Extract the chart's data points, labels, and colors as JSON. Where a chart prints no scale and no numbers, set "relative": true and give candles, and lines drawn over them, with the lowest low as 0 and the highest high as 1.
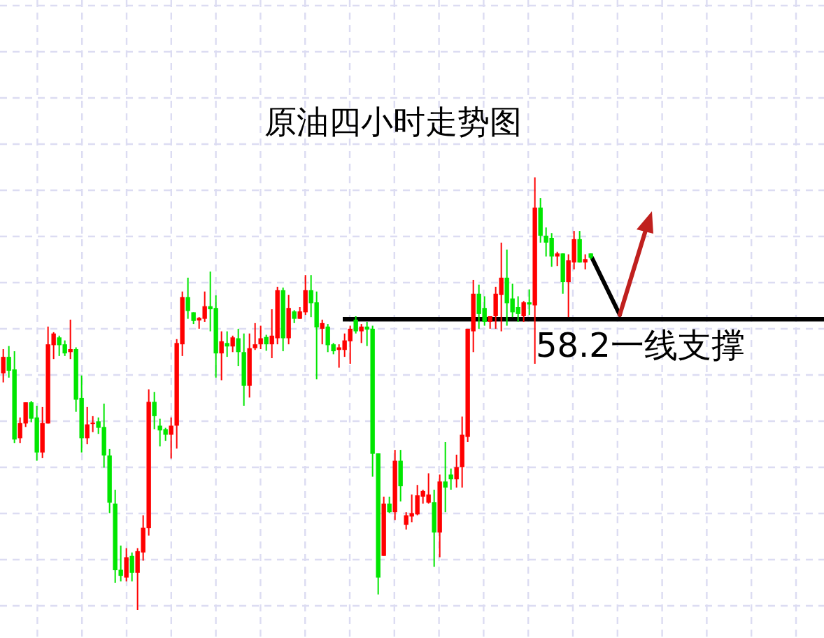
{
  "chart_data": {
    "type": "candlestick",
    "title": "原油四小时走势图",
    "relative": true,
    "grid": true,
    "categories": [
      null,
      null,
      null,
      null,
      null,
      null,
      null,
      null,
      null,
      null,
      null,
      null,
      null,
      null,
      null,
      null,
      null,
      null,
      null,
      null,
      null,
      null,
      null,
      null,
      null,
      null,
      null,
      null,
      null,
      null,
      null,
      null,
      null,
      null,
      null,
      null,
      null,
      null,
      null,
      null,
      null,
      null,
      null,
      null,
      null,
      null,
      null,
      null,
      null,
      null,
      null,
      null,
      null,
      null,
      null,
      null,
      null,
      null,
      null,
      null,
      null,
      null,
      null,
      null,
      null,
      null,
      null,
      null,
      null,
      null,
      null,
      null,
      null,
      null,
      null,
      null,
      null,
      null,
      null,
      null,
      null,
      null,
      null,
      null,
      null,
      null,
      null,
      null,
      null,
      null,
      null,
      null,
      null,
      null,
      null,
      null,
      null,
      null,
      null,
      null,
      null,
      null,
      null,
      null,
      null,
      null
    ],
    "ohlc": [
      [
        0.547,
        0.603,
        0.526,
        0.585
      ],
      [
        0.585,
        0.61,
        0.537,
        0.553
      ],
      [
        0.556,
        0.598,
        0.386,
        0.394
      ],
      [
        0.397,
        0.445,
        0.386,
        0.432
      ],
      [
        0.431,
        0.48,
        0.423,
        0.48
      ],
      [
        0.48,
        0.483,
        0.434,
        0.442
      ],
      [
        0.445,
        0.472,
        0.345,
        0.364
      ],
      [
        0.364,
        0.469,
        0.351,
        0.432
      ],
      [
        0.431,
        0.655,
        0.431,
        0.614
      ],
      [
        0.612,
        0.642,
        0.58,
        0.639
      ],
      [
        0.63,
        0.634,
        0.587,
        0.612
      ],
      [
        0.614,
        0.623,
        0.587,
        0.593
      ],
      [
        0.596,
        0.671,
        0.58,
        0.603
      ],
      [
        0.603,
        0.607,
        0.458,
        0.486
      ],
      [
        0.49,
        0.542,
        0.364,
        0.397
      ],
      [
        0.397,
        0.469,
        0.383,
        0.429
      ],
      [
        0.431,
        0.448,
        0.411,
        0.433
      ],
      [
        0.436,
        0.445,
        0.407,
        0.421
      ],
      [
        0.423,
        0.477,
        0.329,
        0.357
      ],
      [
        0.357,
        0.372,
        0.224,
        0.248
      ],
      [
        0.246,
        0.278,
        0.063,
        0.092
      ],
      [
        0.093,
        0.149,
        0.066,
        0.079
      ],
      [
        0.075,
        0.143,
        0.066,
        0.122
      ],
      [
        0.125,
        0.133,
        0.066,
        0.086
      ],
      [
        0.086,
        0.143,
        0,
        0.136
      ],
      [
        0.133,
        0.219,
        0.114,
        0.19
      ],
      [
        0.189,
        0.51,
        0.172,
        0.481
      ],
      [
        0.481,
        0.504,
        0.418,
        0.448
      ],
      [
        0.426,
        0.442,
        0.378,
        0.415
      ],
      [
        0.418,
        0.421,
        0.391,
        0.405
      ],
      [
        0.405,
        0.445,
        0.35,
        0.426
      ],
      [
        0.426,
        0.626,
        0.373,
        0.617
      ],
      [
        0.614,
        0.736,
        0.587,
        0.723
      ],
      [
        0.723,
        0.768,
        0.673,
        0.691
      ],
      [
        0.688,
        0.688,
        0.661,
        0.668
      ],
      [
        0.669,
        0.677,
        0.65,
        0.675
      ],
      [
        0.673,
        0.736,
        0.666,
        0.702
      ],
      [
        0.702,
        0.782,
        0.644,
        0.695
      ],
      [
        0.698,
        0.727,
        0.537,
        0.593
      ],
      [
        0.593,
        0.644,
        0.531,
        0.621
      ],
      [
        0.617,
        0.644,
        0.585,
        0.609
      ],
      [
        0.609,
        0.634,
        0.596,
        0.63
      ],
      [
        0.628,
        0.65,
        0.564,
        0.596
      ],
      [
        0.596,
        0.639,
        0.472,
        0.518
      ],
      [
        0.518,
        0.639,
        0.491,
        0.605
      ],
      [
        0.605,
        0.663,
        0.601,
        0.614
      ],
      [
        0.614,
        0.657,
        0.603,
        0.628
      ],
      [
        0.631,
        0.636,
        0.599,
        0.614
      ],
      [
        0.614,
        0.695,
        0.582,
        0.634
      ],
      [
        0.628,
        0.747,
        0.614,
        0.739
      ],
      [
        0.739,
        0.745,
        0.598,
        0.628
      ],
      [
        0.628,
        0.728,
        0.614,
        0.698
      ],
      [
        0.69,
        0.693,
        0.663,
        0.673
      ],
      [
        0.673,
        0.7,
        0.673,
        0.69
      ],
      [
        0.688,
        0.774,
        0.682,
        0.739
      ],
      [
        0.739,
        0.774,
        0.677,
        0.709
      ],
      [
        0.711,
        0.736,
        0.533,
        0.653
      ],
      [
        0.65,
        0.671,
        0.614,
        0.663
      ],
      [
        0.655,
        0.661,
        0.596,
        0.612
      ],
      [
        0.614,
        0.617,
        0.591,
        0.598
      ],
      [
        0.601,
        0.614,
        0.56,
        0.607
      ],
      [
        0.601,
        0.639,
        0.585,
        0.623
      ],
      [
        0.621,
        0.657,
        0.569,
        0.65
      ],
      [
        0.671,
        0.679,
        0.639,
        0.644
      ],
      [
        0.644,
        0.661,
        0.617,
        0.655
      ],
      [
        0.655,
        0.666,
        0.61,
        0.648
      ],
      [
        0.65,
        0.657,
        0.308,
        0.361
      ],
      [
        0.362,
        0.362,
        0.036,
        0.075
      ],
      [
        0.125,
        0.262,
        0.125,
        0.246
      ],
      [
        0.246,
        0.262,
        0.224,
        0.226
      ],
      [
        0.226,
        0.37,
        0.208,
        0.345
      ],
      [
        0.345,
        0.37,
        0.251,
        0.286
      ],
      [
        0.197,
        0.226,
        0.186,
        0.219
      ],
      [
        0.216,
        0.267,
        0.203,
        0.224
      ],
      [
        0.221,
        0.289,
        0.219,
        0.265
      ],
      [
        0.262,
        0.278,
        0.246,
        0.275
      ],
      [
        0.248,
        0.316,
        0.246,
        0.267
      ],
      [
        0.249,
        0.278,
        0.1,
        0.179
      ],
      [
        0.179,
        0.313,
        0.122,
        0.297
      ],
      [
        0.297,
        0.388,
        0.226,
        0.283
      ],
      [
        0.313,
        0.327,
        0.278,
        0.302
      ],
      [
        0.302,
        0.359,
        0.283,
        0.33
      ],
      [
        0.33,
        0.447,
        0.283,
        0.405
      ],
      [
        0.4,
        0.65,
        0.388,
        0.65
      ],
      [
        0.644,
        0.763,
        0.596,
        0.731
      ],
      [
        0.731,
        0.752,
        0.65,
        0.684
      ],
      [
        0.698,
        0.725,
        0.657,
        0.666
      ],
      [
        0.666,
        0.679,
        0.65,
        0.679
      ],
      [
        0.679,
        0.747,
        0.65,
        0.731
      ],
      [
        0.728,
        0.849,
        0.644,
        0.768
      ],
      [
        0.768,
        0.833,
        0.657,
        0.709
      ],
      [
        0.72,
        0.754,
        0.677,
        0.688
      ],
      [
        0.7,
        0.725,
        0.666,
        0.684
      ],
      [
        0.679,
        0.714,
        0.666,
        0.711
      ],
      [
        0.711,
        0.741,
        0.682,
        0.706
      ],
      [
        0.704,
        1,
        0.569,
        0.93
      ],
      [
        0.93,
        0.952,
        0.849,
        0.865
      ],
      [
        0.865,
        0.884,
        0.817,
        0.849
      ],
      [
        0.86,
        0.871,
        0.793,
        0.817
      ],
      [
        0.817,
        0.828,
        0.795,
        0.824
      ],
      [
        0.824,
        0.824,
        0.731,
        0.758
      ],
      [
        0.758,
        0.822,
        0.677,
        0.808
      ],
      [
        0.803,
        0.876,
        0.787,
        0.857
      ],
      [
        0.857,
        0.876,
        0.803,
        0.803
      ],
      [
        0.803,
        0.822,
        0.787,
        0.811
      ],
      [
        0.824,
        0.824,
        0.811,
        0.814
      ]
    ],
    "colors": [
      "#ff0000",
      "#00e600",
      "#00e600",
      "#ff0000",
      "#ff0000",
      "#00e600",
      "#00e600",
      "#ff0000",
      "#ff0000",
      "#ff0000",
      "#00e600",
      "#00e600",
      "#ff0000",
      "#00e600",
      "#00e600",
      "#ff0000",
      "#ff0000",
      "#00e600",
      "#00e600",
      "#00e600",
      "#00e600",
      "#00e600",
      "#ff0000",
      "#00e600",
      "#ff0000",
      "#ff0000",
      "#ff0000",
      "#00e600",
      "#00e600",
      "#00e600",
      "#ff0000",
      "#ff0000",
      "#ff0000",
      "#00e600",
      "#00e600",
      "#ff0000",
      "#ff0000",
      "#00e600",
      "#00e600",
      "#ff0000",
      "#00e600",
      "#ff0000",
      "#00e600",
      "#00e600",
      "#ff0000",
      "#ff0000",
      "#ff0000",
      "#00e600",
      "#ff0000",
      "#ff0000",
      "#00e600",
      "#ff0000",
      "#00e600",
      "#ff0000",
      "#ff0000",
      "#00e600",
      "#00e600",
      "#ff0000",
      "#00e600",
      "#00e600",
      "#ff0000",
      "#ff0000",
      "#ff0000",
      "#00e600",
      "#ff0000",
      "#00e600",
      "#00e600",
      "#00e600",
      "#ff0000",
      "#00e600",
      "#ff0000",
      "#00e600",
      "#ff0000",
      "#ff0000",
      "#ff0000",
      "#ff0000",
      "#ff0000",
      "#00e600",
      "#ff0000",
      "#00e600",
      "#00e600",
      "#ff0000",
      "#ff0000",
      "#ff0000",
      "#ff0000",
      "#00e600",
      "#00e600",
      "#ff0000",
      "#ff0000",
      "#ff0000",
      "#00e600",
      "#00e600",
      "#00e600",
      "#ff0000",
      "#00e600",
      "#ff0000",
      "#00e600",
      "#00e600",
      "#00e600",
      "#ff0000",
      "#00e600",
      "#ff0000",
      "#ff0000",
      "#00e600",
      "#ff0000",
      "#00e600"
    ],
    "ref_lines": [
      {
        "axis": "y",
        "value": 0.672,
        "label": "58.2一线支撑",
        "color": "#000000"
      }
    ]
  }
}
